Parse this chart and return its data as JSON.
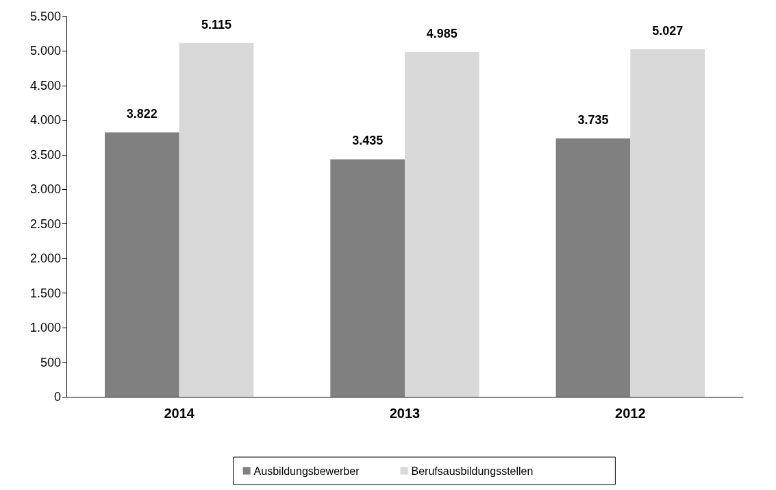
{
  "chart_data": {
    "type": "bar",
    "categories": [
      "2014",
      "2013",
      "2012"
    ],
    "series": [
      {
        "name": "Ausbildungsbewerber",
        "color": "#808080",
        "values": [
          3822,
          3435,
          3735
        ],
        "value_labels": [
          "3.822",
          "3.435",
          "3.735"
        ]
      },
      {
        "name": "Berufsausbildungsstellen",
        "color": "#d9d9d9",
        "values": [
          5115,
          4985,
          5027
        ],
        "value_labels": [
          "5.115",
          "4.985",
          "5.027"
        ]
      }
    ],
    "ylim": [
      0,
      5500
    ],
    "yticks": [
      0,
      {
        "value": 500,
        "label": "500"
      },
      {
        "value": 1000,
        "label": "1.000"
      },
      {
        "value": 1500,
        "label": "1.500"
      },
      {
        "value": 2000,
        "label": "2.000"
      },
      {
        "value": 2500,
        "label": "2.500"
      },
      {
        "value": 3000,
        "label": "3.000"
      },
      {
        "value": 3500,
        "label": "3.500"
      },
      {
        "value": 4000,
        "label": "4.000"
      },
      {
        "value": 4500,
        "label": "4.500"
      },
      {
        "value": 5000,
        "label": "5.000"
      },
      {
        "value": 5500,
        "label": "5.500"
      }
    ],
    "grid": false,
    "legend": "bottom"
  }
}
